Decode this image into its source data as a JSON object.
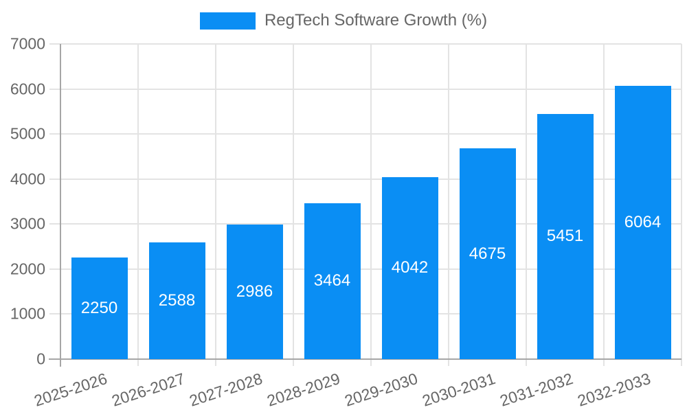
{
  "chart_data": {
    "type": "bar",
    "title": "RegTech Software Growth (%)",
    "categories": [
      "2025-2026",
      "2026-2027",
      "2027-2028",
      "2028-2029",
      "2029-2030",
      "2030-2031",
      "2031-2032",
      "2032-2033"
    ],
    "values": [
      2250,
      2588,
      2986,
      3464,
      4042,
      4675,
      5451,
      6064
    ],
    "bar_labels": [
      "2250",
      "2588",
      "2986",
      "3464",
      "4042",
      "4675",
      "5451",
      "6064"
    ],
    "yticks": [
      0,
      1000,
      2000,
      3000,
      4000,
      5000,
      6000,
      7000
    ],
    "ylim": [
      0,
      7000
    ],
    "xlabel": "",
    "ylabel": "",
    "legend_position": "top",
    "grid": true,
    "colors": {
      "bar": "#0a8ef4",
      "bar_label_text": "#ffffff",
      "grid_line": "#e3e3e3",
      "axis_line": "#a6a6a6",
      "tick_text": "#666666",
      "legend_text": "#666666",
      "background": "#ffffff"
    }
  }
}
